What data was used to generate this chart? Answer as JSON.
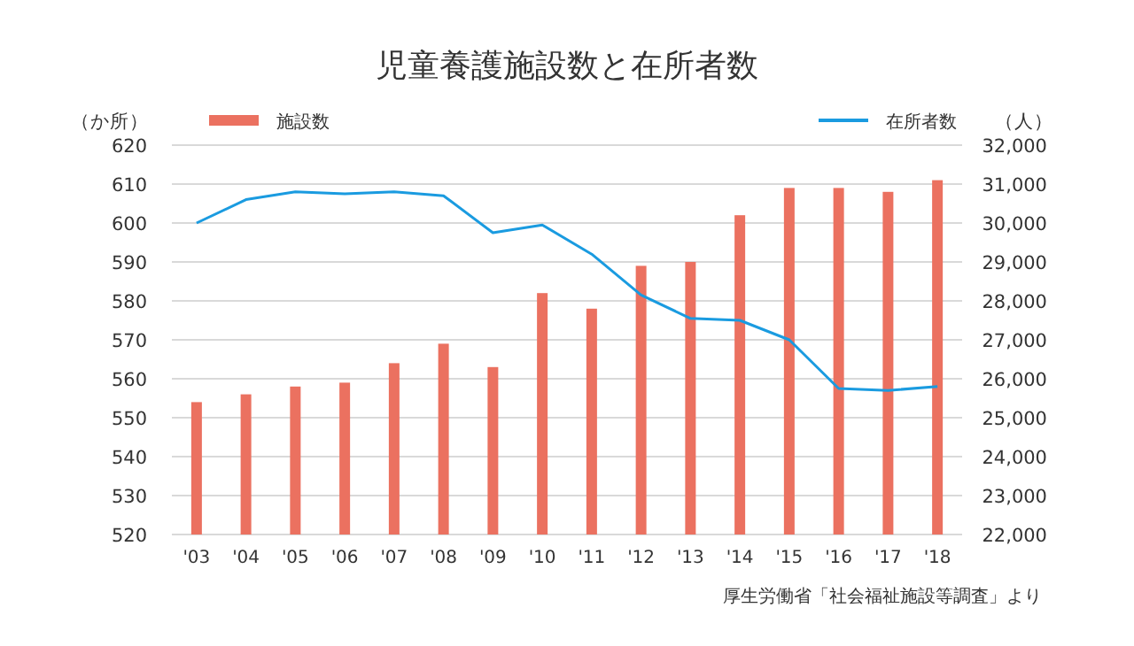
{
  "chart_data": {
    "type": "bar",
    "title": "児童養護施設数と在所者数",
    "ylabel": "（か所）",
    "y2label": "（人）",
    "categories": [
      "'03",
      "'04",
      "'05",
      "'06",
      "'07",
      "'08",
      "'09",
      "'10",
      "'11",
      "'12",
      "'13",
      "'14",
      "'15",
      "'16",
      "'17",
      "'18"
    ],
    "series": [
      {
        "name": "施設数",
        "color": "#eb7160",
        "values": [
          554,
          556,
          558,
          559,
          564,
          569,
          563,
          582,
          578,
          589,
          590,
          602,
          609,
          609,
          608,
          611
        ]
      },
      {
        "name": "在所者数",
        "type": "line",
        "axis": "y2",
        "color": "#1a9be0",
        "values": [
          30000,
          30600,
          30800,
          30750,
          30800,
          30700,
          29750,
          29950,
          29200,
          28150,
          27550,
          27500,
          27000,
          25750,
          25700,
          25800
        ]
      }
    ],
    "ylim": [
      520,
      620
    ],
    "yticks": [
      520,
      530,
      540,
      550,
      560,
      570,
      580,
      590,
      600,
      610,
      620
    ],
    "y2lim": [
      22000,
      32000
    ],
    "y2ticks": [
      {
        "value": 22000,
        "label": "22,000"
      },
      {
        "value": 23000,
        "label": "23,000"
      },
      {
        "value": 24000,
        "label": "24,000"
      },
      {
        "value": 25000,
        "label": "25,000"
      },
      {
        "value": 26000,
        "label": "26,000"
      },
      {
        "value": 27000,
        "label": "27,000"
      },
      {
        "value": 28000,
        "label": "28,000"
      },
      {
        "value": 29000,
        "label": "29,000"
      },
      {
        "value": 30000,
        "label": "30,000"
      },
      {
        "value": 31000,
        "label": "31,000"
      },
      {
        "value": 32000,
        "label": "32,000"
      }
    ],
    "grid": "y",
    "legend": "top",
    "annotations": [
      "厚生労働省「社会福祉施設等調査」より"
    ]
  }
}
